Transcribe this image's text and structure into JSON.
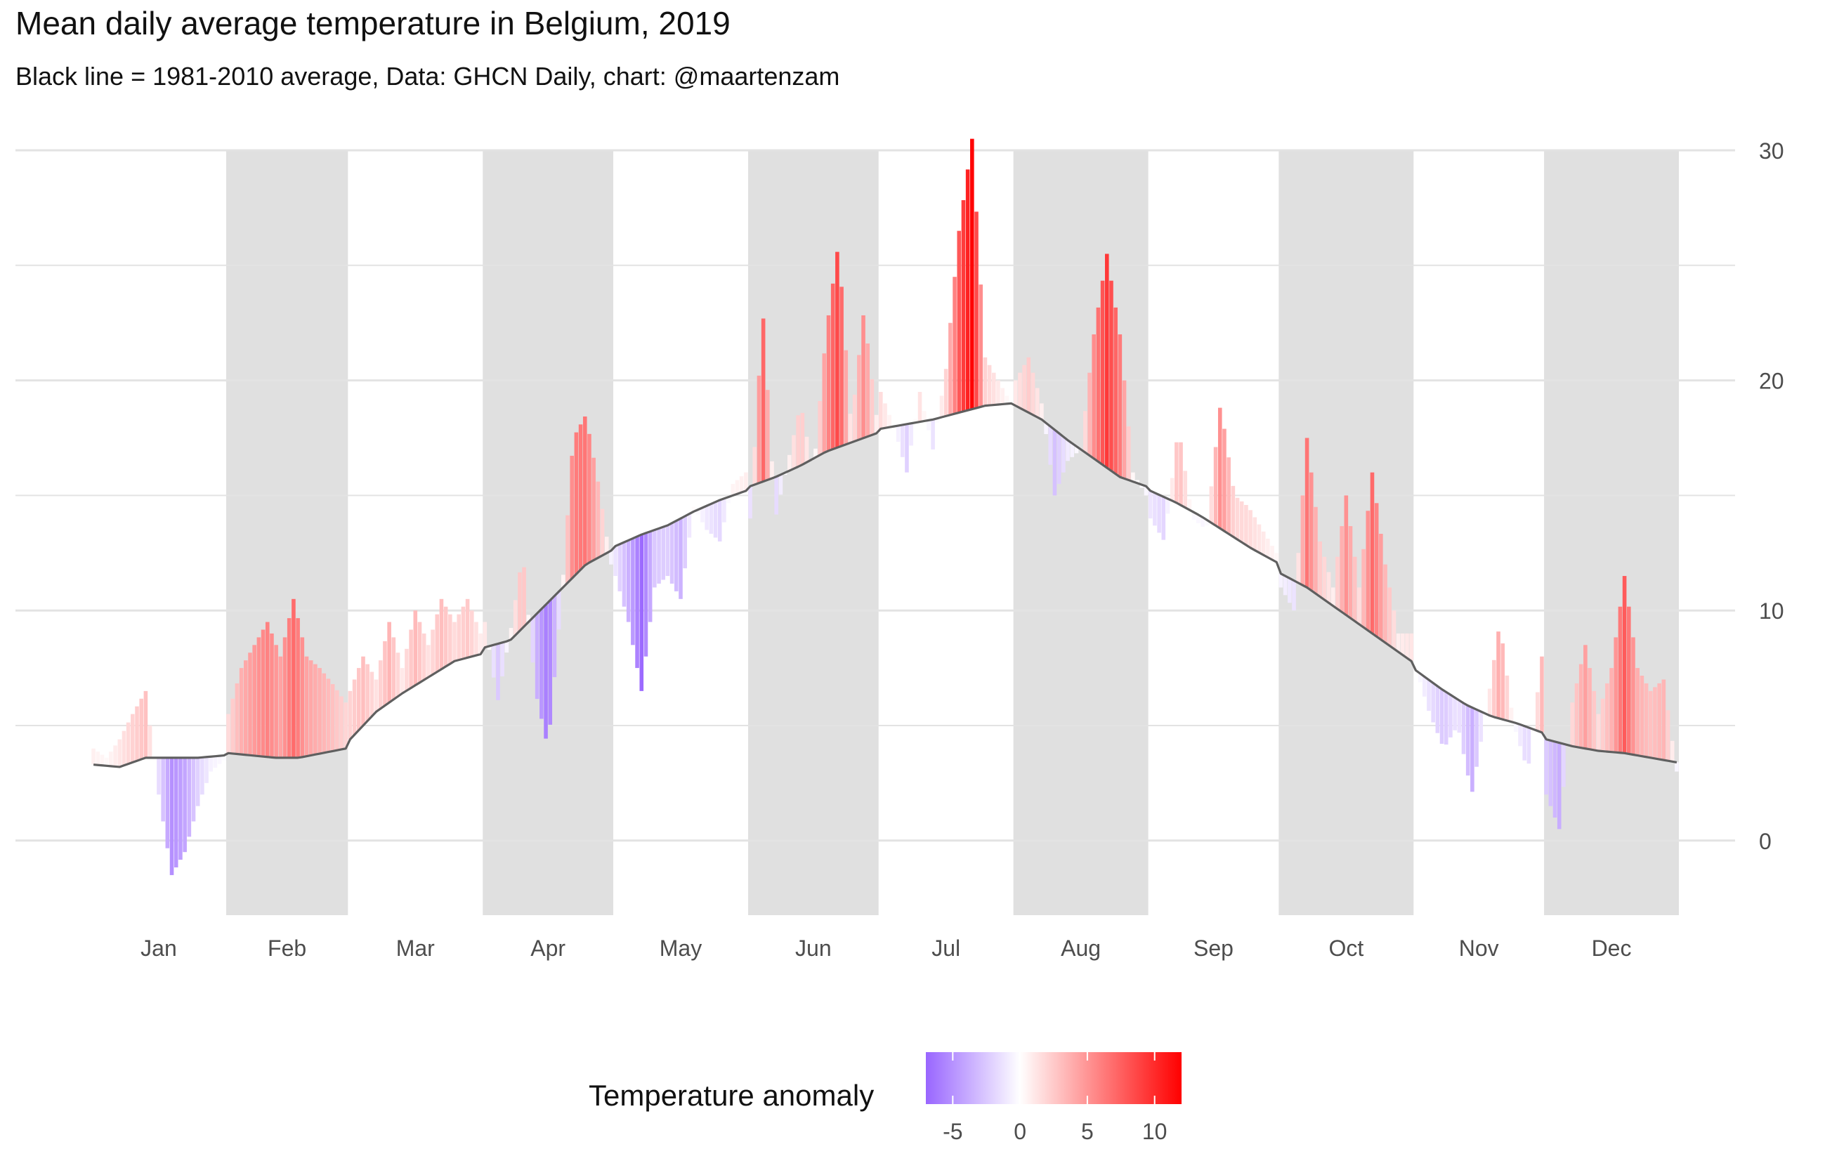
{
  "chart_data": {
    "type": "bar",
    "title": "Mean daily average temperature in Belgium, 2019",
    "subtitle": "Black line = 1981-2010 average, Data: GHCN Daily, chart: @maartenzam",
    "xlabel": "",
    "ylabel": "",
    "ylim": [
      -3.7,
      30
    ],
    "y_ticks": [
      0,
      10,
      20,
      30
    ],
    "month_labels": [
      "Jan",
      "Feb",
      "Mar",
      "Apr",
      "May",
      "Jun",
      "Jul",
      "Aug",
      "Sep",
      "Oct",
      "Nov",
      "Dec"
    ],
    "month_days": [
      31,
      28,
      31,
      30,
      31,
      30,
      31,
      31,
      30,
      31,
      30,
      31
    ],
    "shaded_months": [
      "Feb",
      "Apr",
      "Jun",
      "Aug",
      "Oct",
      "Dec"
    ],
    "grid": true,
    "series": [
      {
        "name": "Mean daily average temperature",
        "monthly_anchor_values": [
          [
            4.0,
            3.6,
            4.4,
            5.5,
            6.5,
            2.0,
            -1.5,
            -0.5,
            1.5,
            3.0,
            3.5
          ],
          [
            5.5,
            7.5,
            8.5,
            9.5,
            8.0,
            10.5,
            8.0,
            7.5,
            6.8,
            6.0
          ],
          [
            6.5,
            8.0,
            7.0,
            9.5,
            7.5,
            10.0,
            8.5,
            10.5,
            9.5,
            10.5,
            9.0
          ],
          [
            9.5,
            6.0,
            9.0,
            12.5,
            6.5,
            4.0,
            10.0,
            17.5,
            18.5,
            15.5,
            12.0
          ],
          [
            11.5,
            9.5,
            6.5,
            11.0,
            11.5,
            10.5,
            14.5,
            13.5,
            13.0,
            15.5,
            16.0
          ],
          [
            14.0,
            23.0,
            14.0,
            16.5,
            19.0,
            16.0,
            22.0,
            26.0,
            18.0,
            23.0,
            18.5
          ],
          [
            19.5,
            18.0,
            16.0,
            19.5,
            17.0,
            20.5,
            26.5,
            30.5,
            21.0,
            20.0,
            19.0
          ],
          [
            20.0,
            21.0,
            19.0,
            15.0,
            16.5,
            17.0,
            22.0,
            25.5,
            22.0,
            16.0,
            15.0
          ],
          [
            14.0,
            13.0,
            18.0,
            14.0,
            13.5,
            19.0,
            15.0,
            14.5,
            13.5,
            12.5
          ],
          [
            11.0,
            10.0,
            17.5,
            13.0,
            11.0,
            15.0,
            11.0,
            16.0,
            12.0,
            9.0,
            9.0
          ],
          [
            7.5,
            5.5,
            4.0,
            5.0,
            2.0,
            5.5,
            9.5,
            5.0,
            3.0,
            8.0
          ],
          [
            2.0,
            0.5,
            6.0,
            8.5,
            5.5,
            7.5,
            11.5,
            7.5,
            6.5,
            7.0,
            3.0
          ]
        ]
      },
      {
        "name": "1981-2010 average",
        "monthly_anchor_values": [
          [
            3.3,
            3.2,
            3.6,
            3.6,
            3.6,
            3.7
          ],
          [
            3.8,
            3.7,
            3.6,
            3.6,
            3.8,
            4.0
          ],
          [
            4.4,
            5.6,
            6.4,
            7.1,
            7.8,
            8.1
          ],
          [
            8.4,
            8.7,
            9.8,
            10.9,
            12.0,
            12.6
          ],
          [
            12.8,
            13.3,
            13.7,
            14.3,
            14.8,
            15.2
          ],
          [
            15.4,
            15.8,
            16.3,
            16.9,
            17.3,
            17.7
          ],
          [
            17.9,
            18.1,
            18.3,
            18.6,
            18.9,
            19.0
          ],
          [
            18.9,
            18.3,
            17.4,
            16.6,
            15.8,
            15.4
          ],
          [
            15.2,
            14.7,
            14.1,
            13.4,
            12.7,
            12.1
          ],
          [
            11.6,
            11.0,
            10.2,
            9.4,
            8.6,
            7.8
          ],
          [
            7.4,
            6.6,
            5.9,
            5.4,
            5.1,
            4.7
          ],
          [
            4.4,
            4.1,
            3.9,
            3.8,
            3.6,
            3.4
          ]
        ]
      }
    ],
    "legend": {
      "title": "Temperature anomaly",
      "type": "color_gradient",
      "placement": "bottom",
      "range": [
        -7,
        12
      ],
      "ticks": [
        "-5",
        "0",
        "5",
        "10"
      ],
      "low_color": "#9966ff",
      "mid_color": "#ffffff",
      "high_color": "#ff0000"
    },
    "colors": {
      "shaded_band": "#e0e0e0",
      "grid": "#e3e3e3",
      "average_line": "#5f5f5f",
      "tick_text": "#4d4d4d"
    }
  }
}
